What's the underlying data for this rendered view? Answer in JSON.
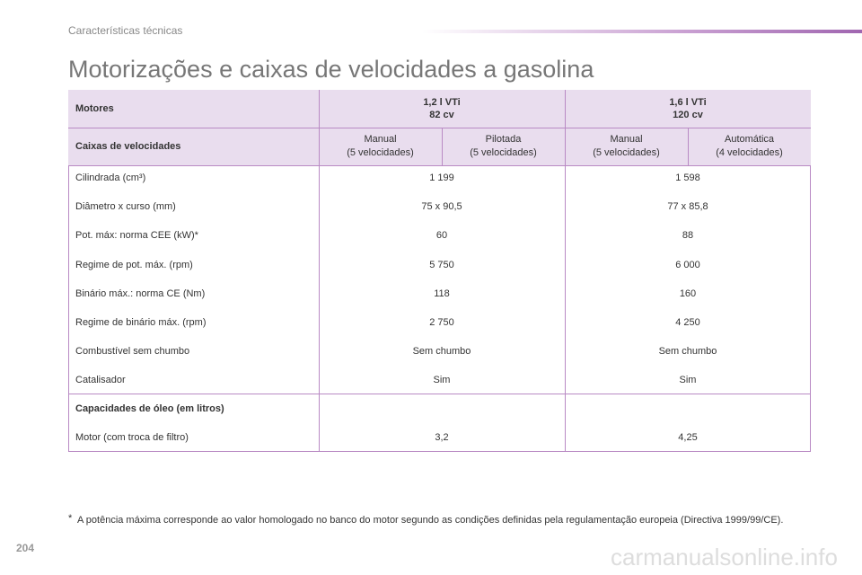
{
  "header": {
    "section": "Características técnicas",
    "page_number": "204"
  },
  "title": "Motorizações e caixas de velocidades a gasolina",
  "table": {
    "engine_header": {
      "label": "Motores",
      "engines": [
        {
          "name": "1,2 l VTi",
          "power": "82 cv"
        },
        {
          "name": "1,6 l VTi",
          "power": "120 cv"
        }
      ]
    },
    "gearbox_header": {
      "label": "Caixas de velocidades",
      "gearboxes": [
        {
          "type": "Manual",
          "note": "(5 velocidades)"
        },
        {
          "type": "Pilotada",
          "note": "(5 velocidades)"
        },
        {
          "type": "Manual",
          "note": "(5 velocidades)"
        },
        {
          "type": "Automática",
          "note": "(4 velocidades)"
        }
      ]
    },
    "rows": [
      [
        "Cilindrada (cm³)",
        "1 199",
        "1 598"
      ],
      [
        "Diâmetro x curso (mm)",
        "75 x 90,5",
        "77 x 85,8"
      ],
      [
        "Pot. máx: norma CEE (kW)*",
        "60",
        "88"
      ],
      [
        "Regime de pot. máx. (rpm)",
        "5 750",
        "6 000"
      ],
      [
        "Binário máx.: norma CE (Nm)",
        "118",
        "160"
      ],
      [
        "Regime de binário máx. (rpm)",
        "2 750",
        "4 250"
      ],
      [
        "Combustível sem chumbo",
        "Sem chumbo",
        "Sem chumbo"
      ],
      [
        "Catalisador",
        "Sim",
        "Sim"
      ]
    ],
    "oil_section": {
      "title": "Capacidades de óleo (em litros)",
      "rows": [
        [
          "Motor (com troca de filtro)",
          "3,2",
          "4,25"
        ]
      ]
    }
  },
  "footnote": {
    "marker": "*",
    "text": "A potência máxima corresponde ao valor homologado no banco do motor segundo as condições definidas pela regulamentação europeia (Directiva 1999/99/CE)."
  },
  "watermark": "carmanualsonline.info"
}
